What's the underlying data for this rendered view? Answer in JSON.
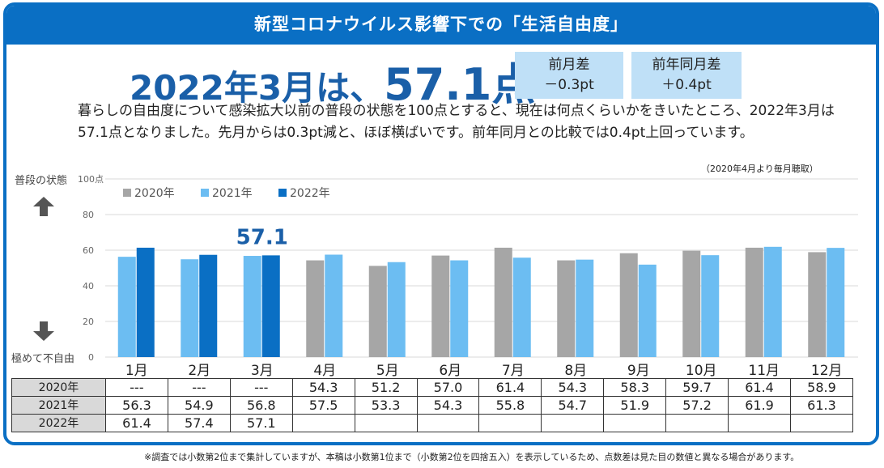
{
  "title": "新型コロナウイルス影響下での「生活自由度」",
  "headline": {
    "prefix": "2022年3月は、",
    "value": "57.1点"
  },
  "diff_month": {
    "label": "前月差",
    "value": "－0.3pt"
  },
  "diff_year": {
    "label": "前年同月差",
    "value": "＋0.4pt"
  },
  "description": "暮らしの自由度について感染拡大以前の普段の状態を100点とすると、現在は何点くらいかをきいたところ、2022年3月は57.1点となりました。先月からは0.3pt減と、ほぼ横ばいです。前年同月との比較では0.4pt上回っています。",
  "note_top": "（2020年4月より毎月聴取）",
  "label_top": "普段の状態",
  "label_bottom": "極めて不自由",
  "footnote": "※調査では小数第2位まで集計していますが、本稿は小数第1位まで（小数第2位を四捨五入）を表示しているため、点数差は見た目の数値と異なる場合があります。",
  "colors": {
    "accent": "#0a6fc4",
    "s2020": "#a6a6a6",
    "s2021": "#6cbdf2",
    "s2022": "#0a6fc4"
  },
  "chart_data": {
    "type": "bar",
    "categories": [
      "1月",
      "2月",
      "3月",
      "4月",
      "5月",
      "6月",
      "7月",
      "8月",
      "9月",
      "10月",
      "11月",
      "12月"
    ],
    "series": [
      {
        "name": "2020年",
        "values": [
          null,
          null,
          null,
          54.3,
          51.2,
          57.0,
          61.4,
          54.3,
          58.3,
          59.7,
          61.4,
          58.9
        ]
      },
      {
        "name": "2021年",
        "values": [
          56.3,
          54.9,
          56.8,
          57.5,
          53.3,
          54.3,
          55.8,
          54.7,
          51.9,
          57.2,
          61.9,
          61.3
        ]
      },
      {
        "name": "2022年",
        "values": [
          61.4,
          57.4,
          57.1,
          null,
          null,
          null,
          null,
          null,
          null,
          null,
          null,
          null
        ]
      }
    ],
    "yticks": [
      "0",
      "20",
      "40",
      "60",
      "80",
      "100点"
    ],
    "ylim": [
      0,
      100
    ],
    "annotation": {
      "category": "3月",
      "text": "57.1"
    }
  },
  "table": {
    "rows": [
      {
        "label": "2020年",
        "cells": [
          "---",
          "---",
          "---",
          "54.3",
          "51.2",
          "57.0",
          "61.4",
          "54.3",
          "58.3",
          "59.7",
          "61.4",
          "58.9"
        ]
      },
      {
        "label": "2021年",
        "cells": [
          "56.3",
          "54.9",
          "56.8",
          "57.5",
          "53.3",
          "54.3",
          "55.8",
          "54.7",
          "51.9",
          "57.2",
          "61.9",
          "61.3"
        ]
      },
      {
        "label": "2022年",
        "cells": [
          "61.4",
          "57.4",
          "57.1",
          "",
          "",
          "",
          "",
          "",
          "",
          "",
          "",
          ""
        ]
      }
    ]
  }
}
